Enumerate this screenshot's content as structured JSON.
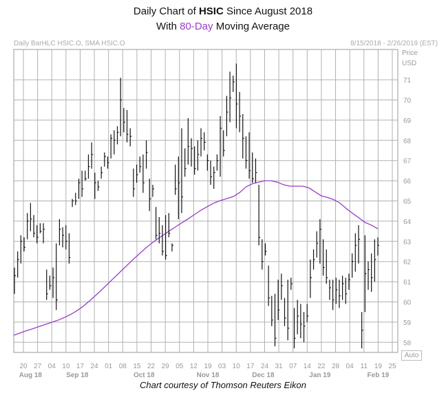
{
  "header": {
    "title_prefix": "Daily Chart of ",
    "title_ticker": "HSIC",
    "title_suffix": " Since August 2018",
    "subtitle_prefix": "With ",
    "subtitle_ma": "80-Day",
    "subtitle_suffix": " Moving Average",
    "ma_color": "#9b3cc7"
  },
  "info_bar": {
    "left": "Daily BarHLC HSIC.O, SMA HSIC.O",
    "right": "8/15/2018 - 2/26/2019 (EST)"
  },
  "axis": {
    "price_label": "Price",
    "currency_label": "USD",
    "auto_label": "Auto"
  },
  "credit": "Chart courtesy of Thomson Reuters Eikon",
  "chart_data": {
    "type": "bar",
    "style": "HLC",
    "ylim": [
      57.5,
      72.5
    ],
    "y_ticks": [
      58,
      59,
      60,
      61,
      62,
      63,
      64,
      65,
      66,
      67,
      68,
      69,
      70,
      71
    ],
    "y_axis_side": "right",
    "grid": true,
    "x_day_ticks": [
      "20",
      "27",
      "04",
      "10",
      "17",
      "24",
      "01",
      "08",
      "15",
      "22",
      "29",
      "05",
      "12",
      "19",
      "03",
      "10",
      "17",
      "24",
      "31",
      "07",
      "14",
      "22",
      "28",
      "04",
      "11",
      "19",
      "25"
    ],
    "x_month_labels": [
      "Aug 18",
      "Sep 18",
      "Oct 18",
      "Nov 18",
      "Dec 18",
      "Jan 19",
      "Feb 19"
    ],
    "bars": [
      [
        61.7,
        60.4,
        61.3
      ],
      [
        62.5,
        61.2,
        62.1
      ],
      [
        63.3,
        61.9,
        63.0
      ],
      [
        63.2,
        62.5,
        62.7
      ],
      [
        64.4,
        63.1,
        64.0
      ],
      [
        64.9,
        63.5,
        64.1
      ],
      [
        64.3,
        63.2,
        63.4
      ],
      [
        63.8,
        62.9,
        63.2
      ],
      [
        63.9,
        63.4,
        63.5
      ],
      [
        63.9,
        62.9,
        63.6
      ],
      [
        61.6,
        60.1,
        60.4
      ],
      [
        61.3,
        60.6,
        60.8
      ],
      [
        61.7,
        60.2,
        61.2
      ],
      [
        62.9,
        59.6,
        60.1
      ],
      [
        64.1,
        62.8,
        63.6
      ],
      [
        63.7,
        62.7,
        63.3
      ],
      [
        63.8,
        62.6,
        63.0
      ],
      [
        63.4,
        61.9,
        62.2
      ],
      [
        65.1,
        64.7,
        65.0
      ],
      [
        65.4,
        64.8,
        65.0
      ],
      [
        66.1,
        65.1,
        65.9
      ],
      [
        66.5,
        65.2,
        65.6
      ],
      [
        66.5,
        66.0,
        66.1
      ],
      [
        67.3,
        66.1,
        66.7
      ],
      [
        67.9,
        66.6,
        67.3
      ],
      [
        66.4,
        65.1,
        65.9
      ],
      [
        66.0,
        65.5,
        65.7
      ],
      [
        66.7,
        66.1,
        66.4
      ],
      [
        67.4,
        66.7,
        67.2
      ],
      [
        67.2,
        66.6,
        66.9
      ],
      [
        68.3,
        67.1,
        68.1
      ],
      [
        68.5,
        67.3,
        68.0
      ],
      [
        68.7,
        67.8,
        68.4
      ],
      [
        71.1,
        68.2,
        70.0
      ],
      [
        69.6,
        68.4,
        68.9
      ],
      [
        69.5,
        67.9,
        68.3
      ],
      [
        68.6,
        67.7,
        68.2
      ],
      [
        66.6,
        65.2,
        65.6
      ],
      [
        66.8,
        65.9,
        66.3
      ],
      [
        67.2,
        66.4,
        66.7
      ],
      [
        67.3,
        65.4,
        65.9
      ],
      [
        68.0,
        66.6,
        67.4
      ],
      [
        66.1,
        64.5,
        65.1
      ],
      [
        65.8,
        65.2,
        65.6
      ],
      [
        64.7,
        63.1,
        63.3
      ],
      [
        64.2,
        62.9,
        63.4
      ],
      [
        63.8,
        62.3,
        62.5
      ],
      [
        64.3,
        62.1,
        62.3
      ],
      [
        64.4,
        63.2,
        63.4
      ],
      [
        62.9,
        62.5,
        62.8
      ],
      [
        66.8,
        65.3,
        65.6
      ],
      [
        67.2,
        64.1,
        65.9
      ],
      [
        68.6,
        64.4,
        65.2
      ],
      [
        67.6,
        66.2,
        66.6
      ],
      [
        69.1,
        66.8,
        67.7
      ],
      [
        68.1,
        66.7,
        67.6
      ],
      [
        67.7,
        66.3,
        66.6
      ],
      [
        68.0,
        66.5,
        67.3
      ],
      [
        68.6,
        67.2,
        68.1
      ],
      [
        68.4,
        67.5,
        67.9
      ],
      [
        67.3,
        66.5,
        67.0
      ],
      [
        67.0,
        65.8,
        66.2
      ],
      [
        66.7,
        65.6,
        66.4
      ],
      [
        67.3,
        66.5,
        67.0
      ],
      [
        69.2,
        66.2,
        68.6
      ],
      [
        68.5,
        67.2,
        67.5
      ],
      [
        70.2,
        68.2,
        69.4
      ],
      [
        71.4,
        68.9,
        70.1
      ],
      [
        71.2,
        70.4,
        70.9
      ],
      [
        71.8,
        68.6,
        69.8
      ],
      [
        70.4,
        68.4,
        69.2
      ],
      [
        69.3,
        67.1,
        68.1
      ],
      [
        68.2,
        66.6,
        67.0
      ],
      [
        68.4,
        66.1,
        66.5
      ],
      [
        67.4,
        65.9,
        66.1
      ],
      [
        67.1,
        65.9,
        66.4
      ],
      [
        65.8,
        62.8,
        63.2
      ],
      [
        63.1,
        61.6,
        62.0
      ],
      [
        62.9,
        62.3,
        62.5
      ],
      [
        61.8,
        59.8,
        60.2
      ],
      [
        60.3,
        58.8,
        59.1
      ],
      [
        60.4,
        57.8,
        58.2
      ],
      [
        61.1,
        59.1,
        59.6
      ],
      [
        61.4,
        60.1,
        60.8
      ],
      [
        60.2,
        58.8,
        59.2
      ],
      [
        61.1,
        58.1,
        58.7
      ],
      [
        61.2,
        60.6,
        60.9
      ],
      [
        59.7,
        57.7,
        58.2
      ],
      [
        60.1,
        58.4,
        59.3
      ],
      [
        59.9,
        58.2,
        58.9
      ],
      [
        59.5,
        58.0,
        58.8
      ],
      [
        59.9,
        59.0,
        59.3
      ],
      [
        62.1,
        60.2,
        61.2
      ],
      [
        62.6,
        61.6,
        62.1
      ],
      [
        63.5,
        62.2,
        62.9
      ],
      [
        64.1,
        61.9,
        63.6
      ],
      [
        63.1,
        61.3,
        61.7
      ],
      [
        62.6,
        60.9,
        61.2
      ],
      [
        61.1,
        60.1,
        60.7
      ],
      [
        61.1,
        59.6,
        60.1
      ],
      [
        61.2,
        59.9,
        60.6
      ],
      [
        61.1,
        59.7,
        60.3
      ],
      [
        61.3,
        60.1,
        60.9
      ],
      [
        61.2,
        59.9,
        60.4
      ],
      [
        61.4,
        60.6,
        61.1
      ],
      [
        62.4,
        61.2,
        62.0
      ],
      [
        63.4,
        61.5,
        62.8
      ],
      [
        63.8,
        61.9,
        63.1
      ],
      [
        59.5,
        57.7,
        58.6
      ],
      [
        63.3,
        59.5,
        61.4
      ],
      [
        62.0,
        60.6,
        61.6
      ],
      [
        62.4,
        60.5,
        61.2
      ],
      [
        63.1,
        61.0,
        62.1
      ],
      [
        63.2,
        62.3,
        62.8
      ]
    ],
    "sma80": [
      58.35,
      58.46,
      58.57,
      58.67,
      58.78,
      58.88,
      58.99,
      59.09,
      59.22,
      59.37,
      59.55,
      59.77,
      60.03,
      60.31,
      60.6,
      60.9,
      61.2,
      61.5,
      61.8,
      62.1,
      62.38,
      62.66,
      62.91,
      63.14,
      63.35,
      63.56,
      63.76,
      63.96,
      64.16,
      64.37,
      64.57,
      64.75,
      64.91,
      65.03,
      65.12,
      65.22,
      65.42,
      65.7,
      65.85,
      65.93,
      66.0,
      66.0,
      65.93,
      65.8,
      65.73,
      65.73,
      65.73,
      65.65,
      65.45,
      65.25,
      65.17,
      65.06,
      64.88,
      64.62,
      64.38,
      64.16,
      63.93,
      63.8,
      63.62
    ]
  }
}
